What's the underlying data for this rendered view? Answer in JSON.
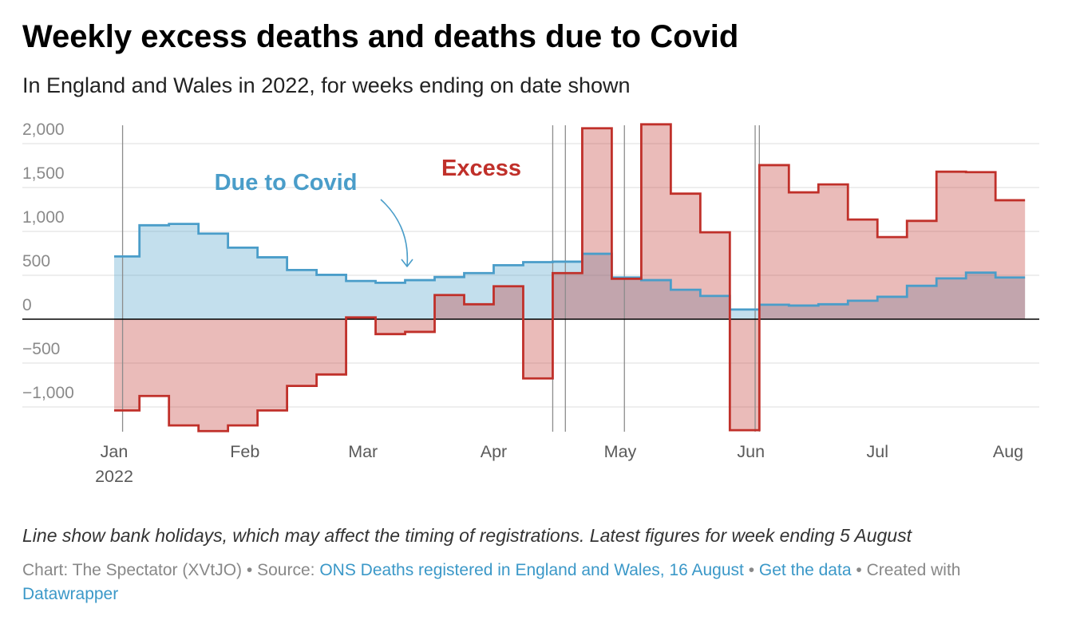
{
  "notes": "Line show bank holidays, which may affect the timing of registrations. Latest figures for week ending 5 August",
  "footer": {
    "chart_credit": "Chart: The Spectator (XVtJO)",
    "bullet": "•",
    "source_label": "Source:",
    "source_link": "ONS Deaths registered in England and Wales, 16 August",
    "get_data_link": "Get the data",
    "created_with": "Created with",
    "datawrapper_link": "Datawrapper"
  },
  "colors": {
    "link": "#3b98c8",
    "bank_holiday_line": "#8c8c8c",
    "zero_line": "#000000"
  },
  "chart_data": {
    "type": "area",
    "interpolation": "step",
    "title": "Weekly excess deaths and deaths due to Covid",
    "subtitle": "In England and Wales in 2022, for weeks ending on date shown",
    "x": [
      "2022-01-07",
      "2022-01-14",
      "2022-01-21",
      "2022-01-28",
      "2022-02-04",
      "2022-02-11",
      "2022-02-18",
      "2022-02-25",
      "2022-03-04",
      "2022-03-11",
      "2022-03-18",
      "2022-03-25",
      "2022-04-01",
      "2022-04-08",
      "2022-04-15",
      "2022-04-22",
      "2022-04-29",
      "2022-05-06",
      "2022-05-13",
      "2022-05-20",
      "2022-05-27",
      "2022-06-03",
      "2022-06-10",
      "2022-06-17",
      "2022-06-24",
      "2022-07-01",
      "2022-07-08",
      "2022-07-15",
      "2022-07-22",
      "2022-07-29",
      "2022-08-05"
    ],
    "series": [
      {
        "name": "Due to Covid",
        "color": "#4a9dc9",
        "values": [
          715,
          1070,
          1085,
          975,
          815,
          705,
          560,
          505,
          435,
          415,
          445,
          480,
          525,
          615,
          650,
          655,
          745,
          475,
          445,
          335,
          265,
          110,
          165,
          155,
          170,
          210,
          255,
          380,
          465,
          530,
          475
        ]
      },
      {
        "name": "Excess",
        "color": "#c0302a",
        "values": [
          -1040,
          -875,
          -1210,
          -1275,
          -1210,
          -1040,
          -760,
          -630,
          20,
          -170,
          -145,
          275,
          170,
          375,
          -675,
          525,
          2175,
          460,
          2220,
          1430,
          990,
          -1265,
          1755,
          1445,
          1535,
          1135,
          935,
          1120,
          1680,
          1675,
          1355
        ]
      }
    ],
    "yticks": [
      2000,
      1500,
      1000,
      500,
      0,
      -500,
      -1000
    ],
    "ytick_labels": [
      "2,000",
      "1,500",
      "1,000",
      "500",
      "0",
      "−500",
      "−1,000"
    ],
    "xticks": [
      "2022-01-01",
      "2022-02-01",
      "2022-03-01",
      "2022-04-01",
      "2022-05-01",
      "2022-06-01",
      "2022-07-01",
      "2022-08-01"
    ],
    "xtick_labels": [
      "Jan",
      "Feb",
      "Mar",
      "Apr",
      "May",
      "Jun",
      "Jul",
      "Aug"
    ],
    "xtick_year_label": "2022",
    "xlim": [
      "2022-01-01",
      "2022-08-08"
    ],
    "ylim": [
      -1300,
      2250
    ],
    "grid": true,
    "bank_holidays": [
      "2022-01-03",
      "2022-04-15",
      "2022-04-18",
      "2022-05-02",
      "2022-06-02",
      "2022-06-03"
    ]
  }
}
